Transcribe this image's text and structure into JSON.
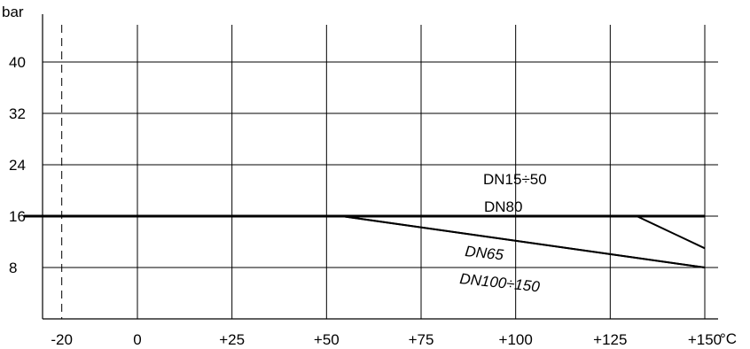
{
  "chart_data": {
    "type": "line",
    "xlabel": "°C",
    "ylabel": "bar",
    "xlim": [
      -30,
      150
    ],
    "ylim": [
      0,
      48
    ],
    "x_ticks": [
      {
        "value": -20,
        "label": "-20"
      },
      {
        "value": 0,
        "label": "0"
      },
      {
        "value": 25,
        "label": "+25"
      },
      {
        "value": 50,
        "label": "+50"
      },
      {
        "value": 75,
        "label": "+75"
      },
      {
        "value": 100,
        "label": "+100"
      },
      {
        "value": 125,
        "label": "+125"
      },
      {
        "value": 150,
        "label": "+150"
      }
    ],
    "y_ticks": [
      {
        "value": 8,
        "label": "8"
      },
      {
        "value": 16,
        "label": "16"
      },
      {
        "value": 24,
        "label": "24"
      },
      {
        "value": 32,
        "label": "32"
      },
      {
        "value": 40,
        "label": "40"
      }
    ],
    "reference_line": {
      "x": -20,
      "style": "dashed"
    },
    "grid": true,
    "series": [
      {
        "name": "DN15÷50",
        "points": [
          [
            -30,
            16
          ],
          [
            150,
            16
          ]
        ]
      },
      {
        "name": "DN80",
        "points": [
          [
            -30,
            16
          ],
          [
            132,
            16
          ],
          [
            150,
            11
          ]
        ]
      },
      {
        "name": "DN65",
        "points": [
          [
            -30,
            16
          ],
          [
            54,
            16
          ],
          [
            150,
            8
          ]
        ]
      },
      {
        "name": "DN100÷150",
        "points": [
          [
            -30,
            16
          ],
          [
            54,
            16
          ],
          [
            150,
            8
          ]
        ]
      }
    ]
  }
}
